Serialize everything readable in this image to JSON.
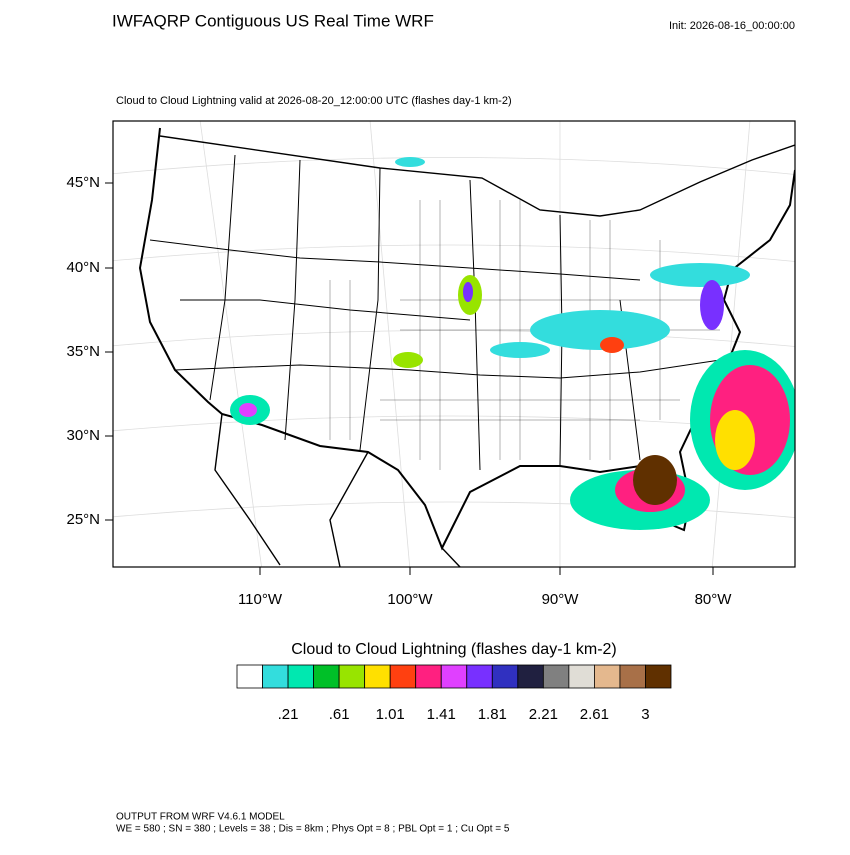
{
  "header": {
    "title": "IWFAQRP Contiguous US Real Time WRF",
    "init": "Init: 2026-08-16_00:00:00"
  },
  "map": {
    "subtitle": "Cloud to Cloud Lightning valid at 2026-08-20_12:00:00 UTC   (flashes day-1 km-2)",
    "lat_labels": [
      "45°N",
      "40°N",
      "35°N",
      "30°N",
      "25°N"
    ],
    "lon_labels": [
      "110°W",
      "100°W",
      "90°W",
      "80°W"
    ]
  },
  "colorbar": {
    "title": "Cloud to Cloud Lightning  (flashes day-1 km-2)",
    "colors": [
      "#ffffff",
      "#33dddd",
      "#00e8b0",
      "#00c028",
      "#98e400",
      "#ffe000",
      "#ff4010",
      "#ff2080",
      "#e040ff",
      "#7830ff",
      "#3030c0",
      "#202040",
      "#808080",
      "#e0ddd6",
      "#e4b88e",
      "#a87048",
      "#603000"
    ],
    "labels": [
      ".21",
      ".61",
      "1.01",
      "1.41",
      "1.81",
      "2.21",
      "2.61",
      "3"
    ]
  },
  "footer": {
    "line1": "OUTPUT FROM WRF V4.6.1 MODEL",
    "line2": "WE = 580 ; SN = 380 ; Levels = 38 ; Dis = 8km ; Phys Opt = 8 ; PBL Opt = 1 ; Cu Opt = 5"
  }
}
